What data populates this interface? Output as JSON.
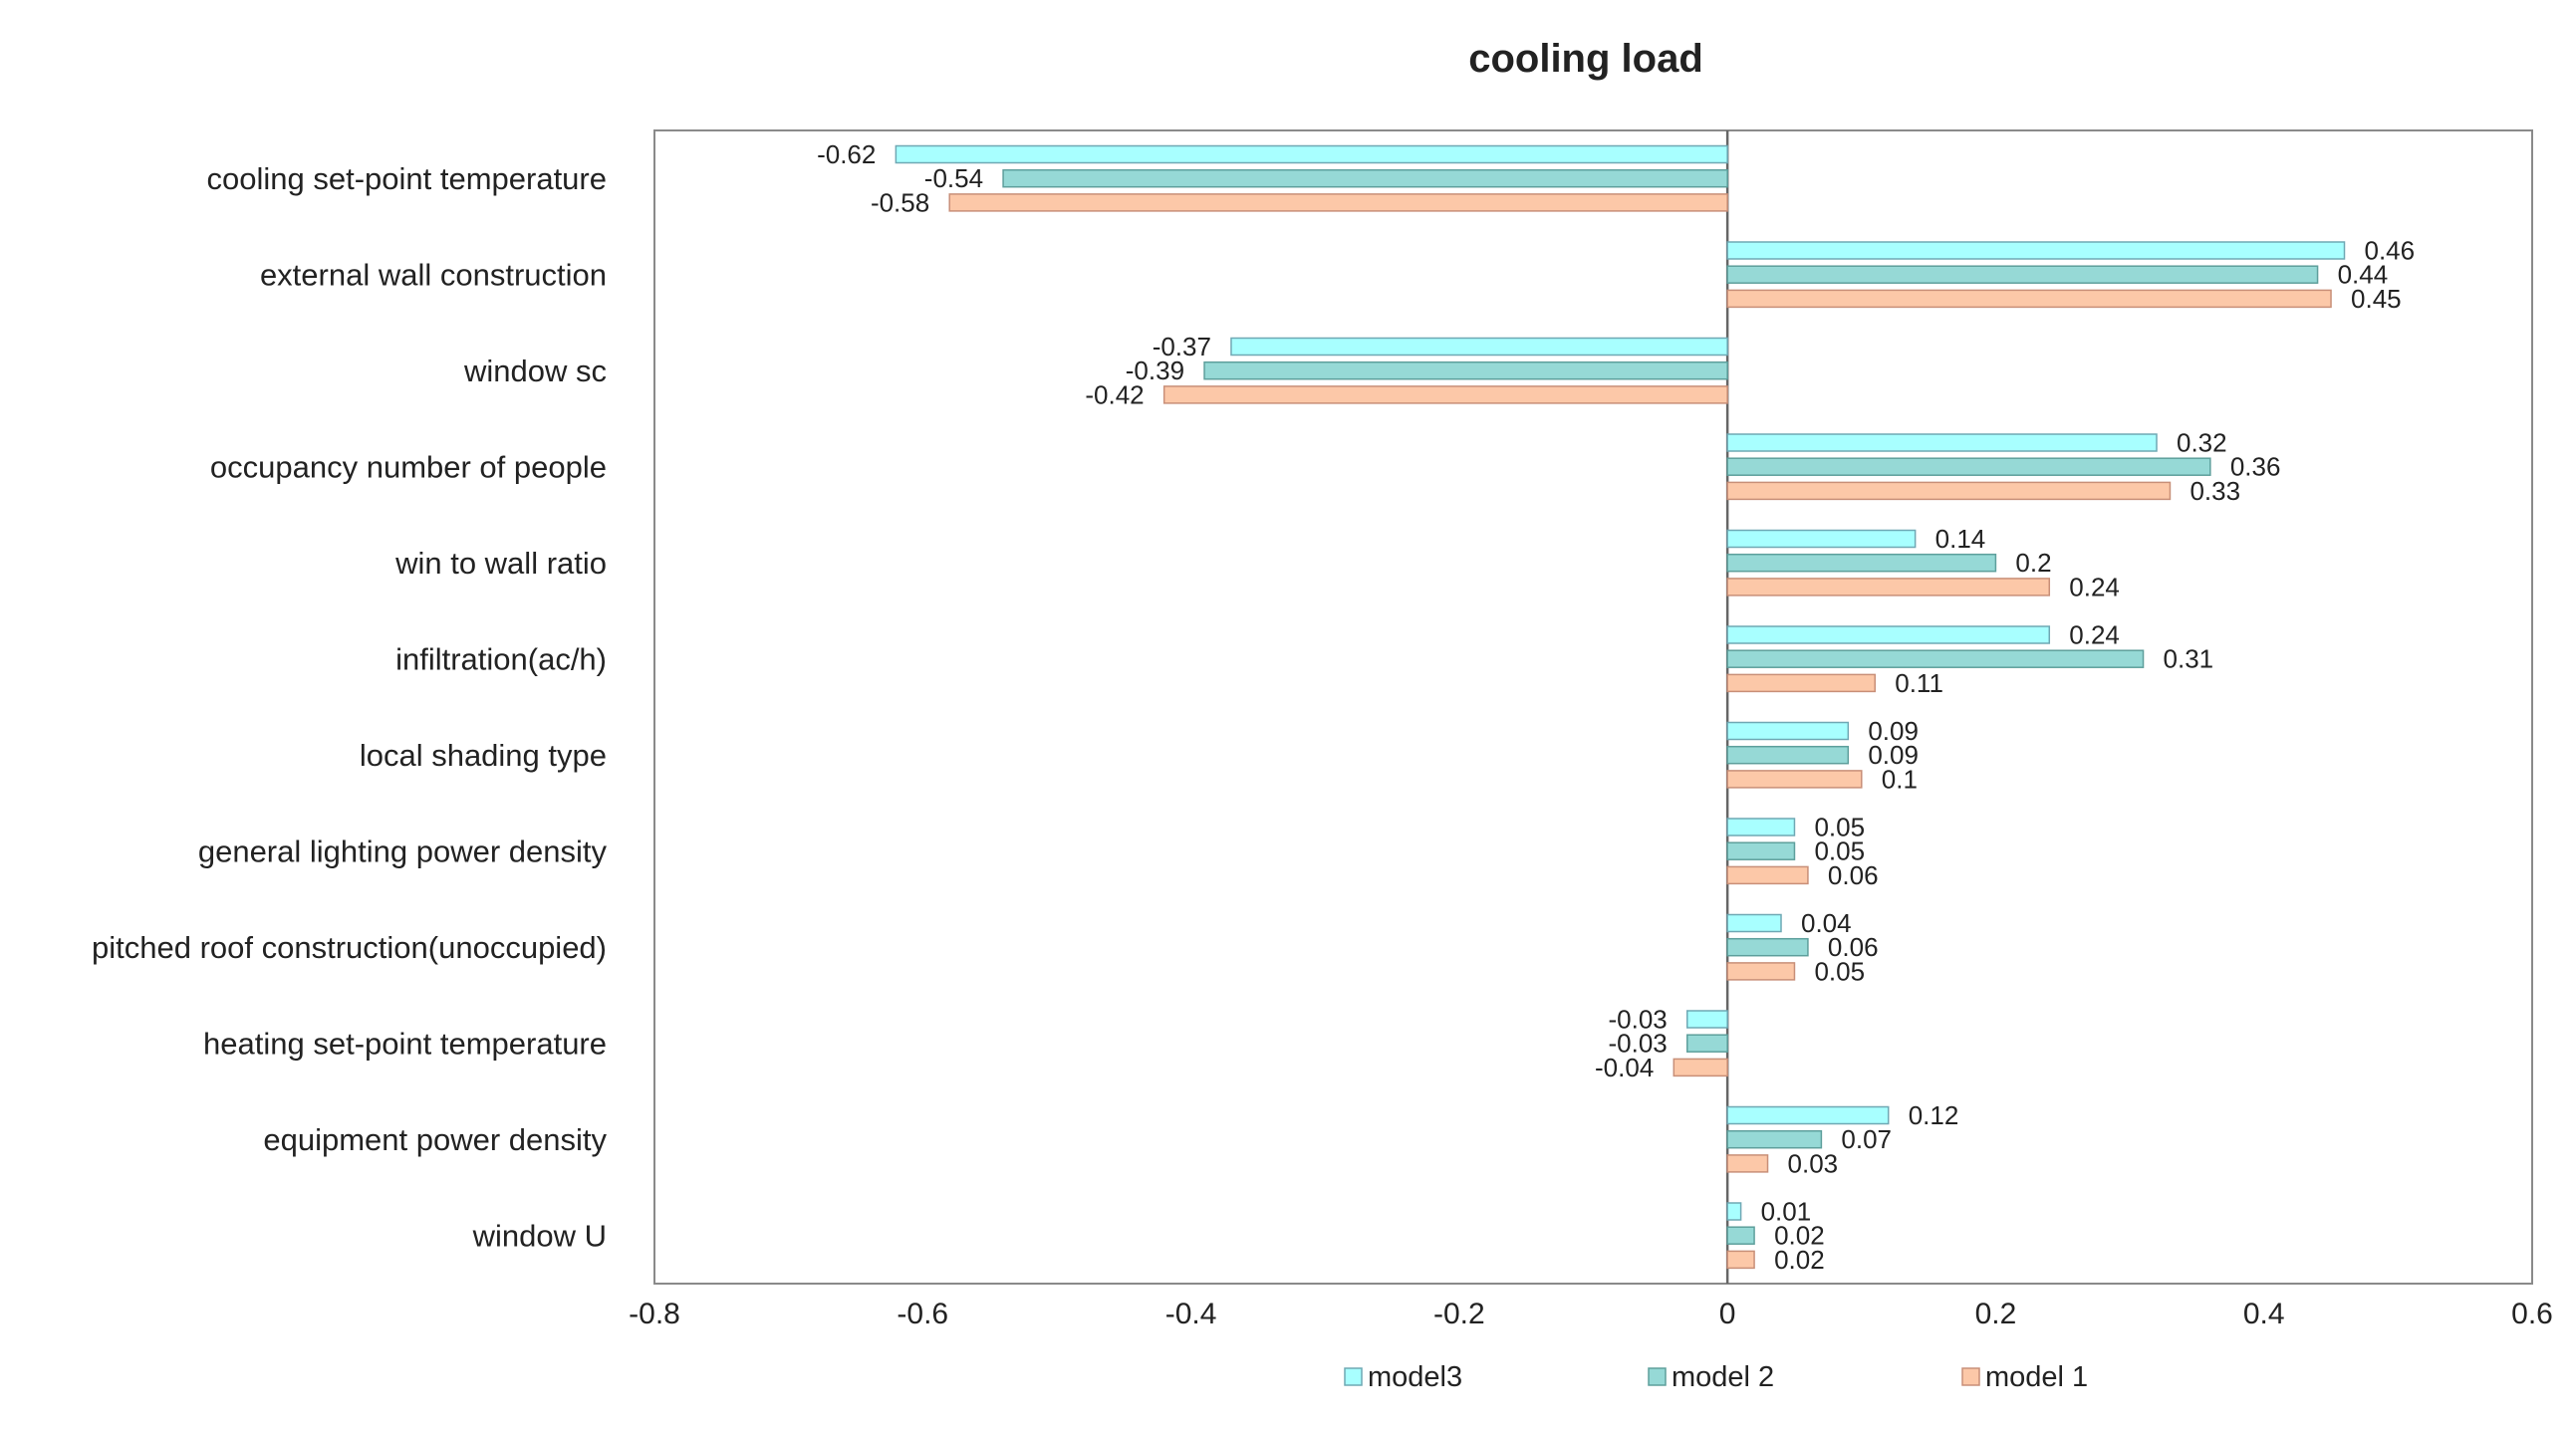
{
  "chart_data": {
    "type": "bar",
    "orientation": "horizontal",
    "title": "cooling load",
    "xlabel": "",
    "ylabel": "",
    "xlim": [
      -0.8,
      0.6
    ],
    "xticks": [
      -0.8,
      -0.6,
      -0.4,
      -0.2,
      0,
      0.2,
      0.4,
      0.6
    ],
    "xtick_labels": [
      "-0.8",
      "-0.6",
      "-0.4",
      "-0.2",
      "0",
      "0.2",
      "0.4",
      "0.6"
    ],
    "grid": false,
    "legend_position": "bottom",
    "categories": [
      "cooling set-point temperature",
      "external wall construction",
      "window sc",
      "occupancy number of people",
      "win to wall ratio",
      "infiltration(ac/h)",
      "local shading type",
      "general lighting power density",
      "pitched roof construction(unoccupied)",
      "heating set-point temperature",
      "equipment power density",
      "window U"
    ],
    "series": [
      {
        "name": "model3",
        "color": "#a8ffff",
        "border": "#6fa8b4",
        "values": [
          -0.62,
          0.46,
          -0.37,
          0.32,
          0.14,
          0.24,
          0.09,
          0.05,
          0.04,
          -0.03,
          0.12,
          0.01
        ],
        "labels": [
          "-0.62",
          "0.46",
          "-0.37",
          "0.32",
          "0.14",
          "0.24",
          "0.09",
          "0.05",
          "0.04",
          "-0.03",
          "0.12",
          "0.01"
        ]
      },
      {
        "name": "model 2",
        "color": "#96d9d6",
        "border": "#5e9f9c",
        "values": [
          -0.54,
          0.44,
          -0.39,
          0.36,
          0.2,
          0.31,
          0.09,
          0.05,
          0.06,
          -0.03,
          0.07,
          0.02
        ],
        "labels": [
          "-0.54",
          "0.44",
          "-0.39",
          "0.36",
          "0.2",
          "0.31",
          "0.09",
          "0.05",
          "0.06",
          "-0.03",
          "0.07",
          "0.02"
        ]
      },
      {
        "name": "model 1",
        "color": "#fcc8a8",
        "border": "#c88f78",
        "values": [
          -0.58,
          0.45,
          -0.42,
          0.33,
          0.24,
          0.11,
          0.1,
          0.06,
          0.05,
          -0.04,
          0.03,
          0.02
        ],
        "labels": [
          "-0.58",
          "0.45",
          "-0.42",
          "0.33",
          "0.24",
          "0.11",
          "0.1",
          "0.06",
          "0.05",
          "-0.04",
          "0.03",
          "0.02"
        ]
      }
    ]
  }
}
